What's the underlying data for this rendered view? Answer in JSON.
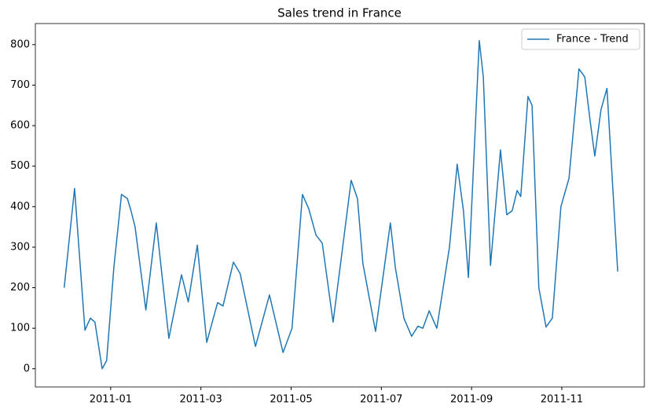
{
  "chart_data": {
    "type": "line",
    "title": "Sales trend in France",
    "x": [
      -1.03,
      -0.8,
      -0.57,
      -0.45,
      -0.35,
      -0.19,
      -0.09,
      0.07,
      0.24,
      0.37,
      0.45,
      0.54,
      0.78,
      1.01,
      1.29,
      1.57,
      1.72,
      1.92,
      2.13,
      2.37,
      2.49,
      2.72,
      2.87,
      3.21,
      3.52,
      3.82,
      4.02,
      4.25,
      4.39,
      4.55,
      4.69,
      4.93,
      5.33,
      5.47,
      5.59,
      5.87,
      6.2,
      6.31,
      6.5,
      6.67,
      6.81,
      6.92,
      7.06,
      7.23,
      7.51,
      7.68,
      7.82,
      7.93,
      8.17,
      8.26,
      8.42,
      8.64,
      8.78,
      8.9,
      9.01,
      9.09,
      9.25,
      9.34,
      9.49,
      9.65,
      9.79,
      9.98,
      10.16,
      10.38,
      10.51,
      10.63,
      10.73,
      10.87,
      11.0,
      11.24
    ],
    "series": [
      {
        "name": "France - Trend",
        "color": "#1f77b4",
        "values": [
          200,
          445,
          95,
          125,
          115,
          0,
          20,
          250,
          430,
          420,
          390,
          350,
          145,
          360,
          75,
          232,
          165,
          305,
          65,
          163,
          155,
          263,
          235,
          55,
          182,
          40,
          100,
          430,
          395,
          330,
          310,
          115,
          465,
          420,
          260,
          92,
          360,
          250,
          125,
          80,
          105,
          100,
          143,
          100,
          300,
          505,
          390,
          225,
          810,
          720,
          255,
          540,
          380,
          390,
          440,
          425,
          672,
          650,
          200,
          103,
          125,
          400,
          470,
          740,
          720,
          610,
          525,
          640,
          692,
          240
        ]
      }
    ],
    "xlim": [
      -1.67,
      11.83
    ],
    "xticks": [
      {
        "value": 0,
        "label": "2011-01"
      },
      {
        "value": 2,
        "label": "2011-03"
      },
      {
        "value": 4,
        "label": "2011-05"
      },
      {
        "value": 6,
        "label": "2011-07"
      },
      {
        "value": 8,
        "label": "2011-09"
      },
      {
        "value": 10,
        "label": "2011-11"
      }
    ],
    "ylim": [
      -45,
      852
    ],
    "yticks": [
      0,
      100,
      200,
      300,
      400,
      500,
      600,
      700,
      800
    ],
    "grid": false,
    "legend": "upper right"
  }
}
